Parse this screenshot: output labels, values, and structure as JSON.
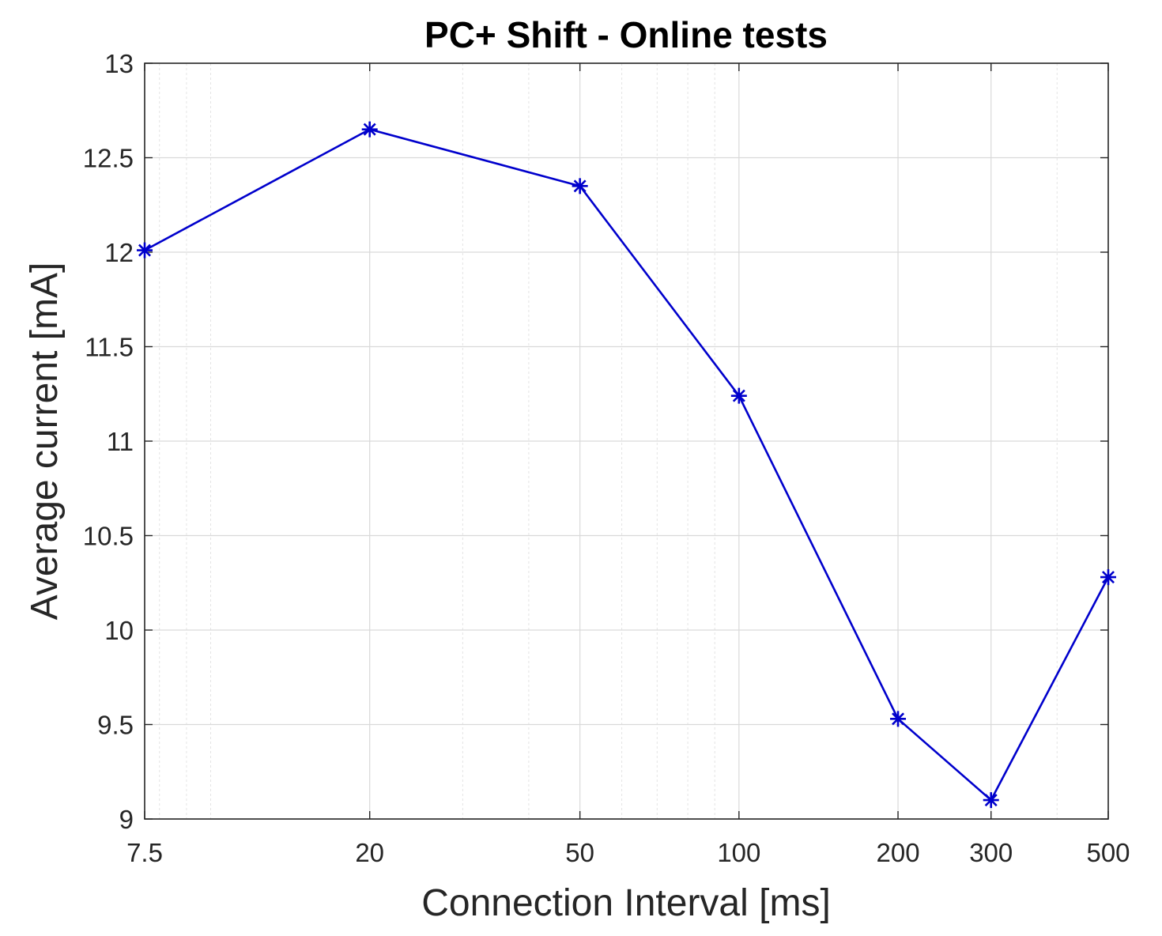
{
  "chart_data": {
    "type": "line",
    "title": "PC+ Shift - Online tests",
    "xlabel": "Connection Interval [ms]",
    "ylabel": "Average current [mA]",
    "xscale": "log",
    "xlim": [
      7.5,
      500
    ],
    "ylim": [
      9,
      13
    ],
    "grid": true,
    "x_ticks": [
      7.5,
      20,
      50,
      100,
      200,
      300,
      500
    ],
    "x_tick_labels": [
      "7.5",
      "20",
      "50",
      "100",
      "200",
      "300",
      "500"
    ],
    "y_ticks": [
      9,
      9.5,
      10,
      10.5,
      11,
      11.5,
      12,
      12.5,
      13
    ],
    "y_tick_labels": [
      "9",
      "9.5",
      "10",
      "10.5",
      "11",
      "11.5",
      "12",
      "12.5",
      "13"
    ],
    "series": [
      {
        "marker": "asterisk",
        "color": "#0000cc",
        "x": [
          7.5,
          20,
          50,
          100,
          200,
          300,
          500
        ],
        "y": [
          12.01,
          12.65,
          12.35,
          11.24,
          9.53,
          9.1,
          10.28
        ]
      }
    ]
  }
}
